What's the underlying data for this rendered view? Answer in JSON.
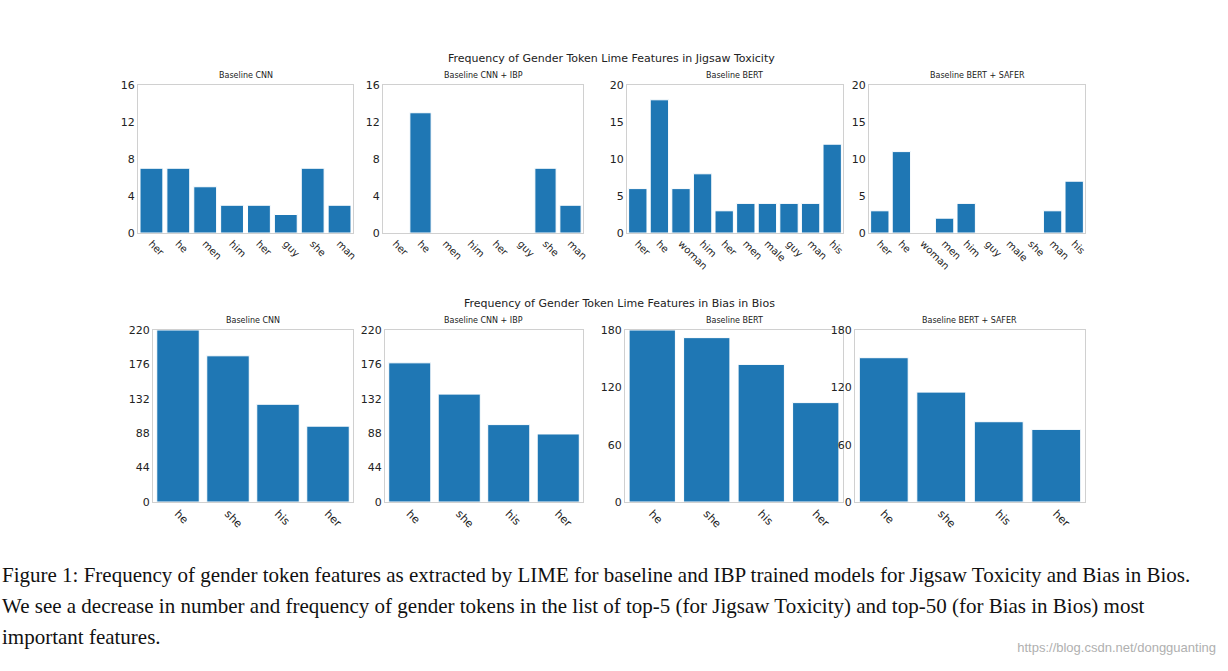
{
  "figure": {
    "titles": [
      "Frequency of Gender Token Lime Features in Jigsaw Toxicity",
      "Frequency of Gender Token Lime Features in Bias in Bios"
    ],
    "caption": "Figure 1: Frequency of gender token features as extracted by LIME for baseline and IBP trained models for Jigsaw Toxicity and Bias in Bios. We see a decrease in number and frequency of gender tokens in the list of top-5 (for Jigsaw Toxicity) and top-50 (for Bias in Bios) most important features.",
    "watermark": "https://blog.csdn.net/dongguanting"
  },
  "chart_data": [
    {
      "type": "bar",
      "title": "Baseline CNN",
      "categories": [
        "her",
        "he",
        "men",
        "him",
        "her",
        "guy",
        "she",
        "man"
      ],
      "values": [
        7,
        7,
        5,
        3,
        3,
        2,
        7,
        3
      ],
      "color": "#1f77b4",
      "ylim": [
        0,
        16
      ],
      "yticks": [
        0,
        4,
        8,
        12,
        16
      ],
      "grid": false
    },
    {
      "type": "bar",
      "title": "Baseline CNN + IBP",
      "categories": [
        "her",
        "he",
        "men",
        "him",
        "her",
        "guy",
        "she",
        "man"
      ],
      "values": [
        0,
        13,
        0,
        0,
        0,
        0,
        7,
        3
      ],
      "color": "#1f77b4",
      "ylim": [
        0,
        16
      ],
      "yticks": [
        0,
        4,
        8,
        12,
        16
      ],
      "grid": false
    },
    {
      "type": "bar",
      "title": "Baseline BERT",
      "categories": [
        "her",
        "he",
        "woman",
        "him",
        "her",
        "men",
        "male",
        "guy",
        "man",
        "his"
      ],
      "values": [
        6,
        18,
        6,
        8,
        3,
        4,
        4,
        4,
        4,
        12
      ],
      "color": "#1f77b4",
      "ylim": [
        0,
        20
      ],
      "yticks": [
        0,
        5,
        10,
        15,
        20
      ],
      "grid": false
    },
    {
      "type": "bar",
      "title": "Baseline BERT + SAFER",
      "categories": [
        "her",
        "he",
        "woman",
        "men",
        "him",
        "guy",
        "male",
        "she",
        "man",
        "his"
      ],
      "values": [
        3,
        11,
        0,
        2,
        4,
        0,
        0,
        0,
        3,
        7
      ],
      "color": "#1f77b4",
      "ylim": [
        0,
        20
      ],
      "yticks": [
        0,
        5,
        10,
        15,
        20
      ],
      "grid": false
    },
    {
      "type": "bar",
      "title": "Baseline CNN",
      "categories": [
        "he",
        "she",
        "his",
        "her"
      ],
      "values": [
        220,
        187,
        125,
        97
      ],
      "color": "#1f77b4",
      "ylim": [
        0,
        220
      ],
      "yticks": [
        0,
        44,
        88,
        132,
        176,
        220
      ],
      "grid": false
    },
    {
      "type": "bar",
      "title": "Baseline CNN + IBP",
      "categories": [
        "he",
        "she",
        "his",
        "her"
      ],
      "values": [
        178,
        138,
        99,
        87
      ],
      "color": "#1f77b4",
      "ylim": [
        0,
        220
      ],
      "yticks": [
        0,
        44,
        88,
        132,
        176,
        220
      ],
      "grid": false
    },
    {
      "type": "bar",
      "title": "Baseline BERT",
      "categories": [
        "he",
        "she",
        "his",
        "her"
      ],
      "values": [
        180,
        172,
        144,
        104
      ],
      "color": "#1f77b4",
      "ylim": [
        0,
        180
      ],
      "yticks": [
        0,
        60,
        120,
        180
      ],
      "grid": false
    },
    {
      "type": "bar",
      "title": "Baseline BERT + SAFER",
      "categories": [
        "he",
        "she",
        "his",
        "her"
      ],
      "values": [
        151,
        115,
        84,
        76
      ],
      "color": "#1f77b4",
      "ylim": [
        0,
        180
      ],
      "yticks": [
        0,
        60,
        120,
        180
      ],
      "grid": false
    }
  ]
}
